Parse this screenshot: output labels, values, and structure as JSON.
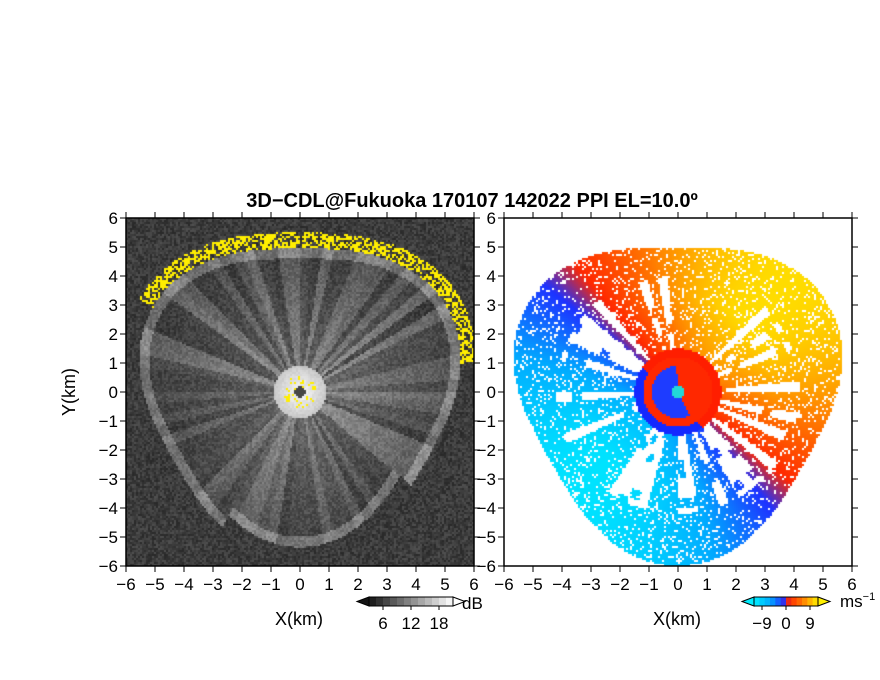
{
  "title": "3D−CDL@Fukuoka 170107 142022 PPI EL=10.0º",
  "chart_data": [
    {
      "type": "heatmap",
      "panel": "left",
      "quantity": "reflectivity / SNR (grayscale)",
      "xlabel": "X(km)",
      "ylabel": "Y(km)",
      "xlim": [
        -6,
        6
      ],
      "ylim": [
        -6,
        6
      ],
      "xticks": [
        "−6",
        "−5",
        "−4",
        "−3",
        "−2",
        "−1",
        "0",
        "1",
        "2",
        "3",
        "4",
        "5",
        "6"
      ],
      "yticks": [
        "6",
        "5",
        "4",
        "3",
        "2",
        "1",
        "0",
        "−1",
        "−2",
        "−3",
        "−4",
        "−5",
        "−6"
      ],
      "colorbar": {
        "unit": "dB",
        "ticks": [
          "6",
          "12",
          "18"
        ],
        "range": [
          3,
          21
        ],
        "palette": "gray"
      },
      "features": {
        "echo_radius_km": 5.4,
        "yellow_edge_arc_deg": [
          10,
          150
        ],
        "center_bright_radius_km": 0.9
      }
    },
    {
      "type": "heatmap",
      "panel": "right",
      "quantity": "Doppler velocity",
      "xlabel": "X(km)",
      "ylabel": "",
      "xlim": [
        -6,
        6
      ],
      "ylim": [
        -6,
        6
      ],
      "xticks": [
        "−6",
        "−5",
        "−4",
        "−3",
        "−2",
        "−1",
        "0",
        "1",
        "2",
        "3",
        "4",
        "5",
        "6"
      ],
      "yticks": [
        "6",
        "5",
        "4",
        "3",
        "2",
        "1",
        "0",
        "−1",
        "−2",
        "−3",
        "−4",
        "−5",
        "−6"
      ],
      "colorbar": {
        "unit": "ms",
        "unit_sup": "−1",
        "ticks": [
          "−9",
          "0",
          "9"
        ],
        "range": [
          -12,
          12
        ],
        "palette": "blue-red-yellow"
      },
      "features": {
        "outer_radius_km": 5.5,
        "positive_sector_center_deg": 45,
        "center_disk_radius_km": 1.5,
        "center_marker_color": "#22d8d8"
      }
    }
  ],
  "colors": {
    "yellow": "#ffee00",
    "cyan": "#22d8d8",
    "blue": "#1a33ff",
    "red": "#ff2a00"
  }
}
